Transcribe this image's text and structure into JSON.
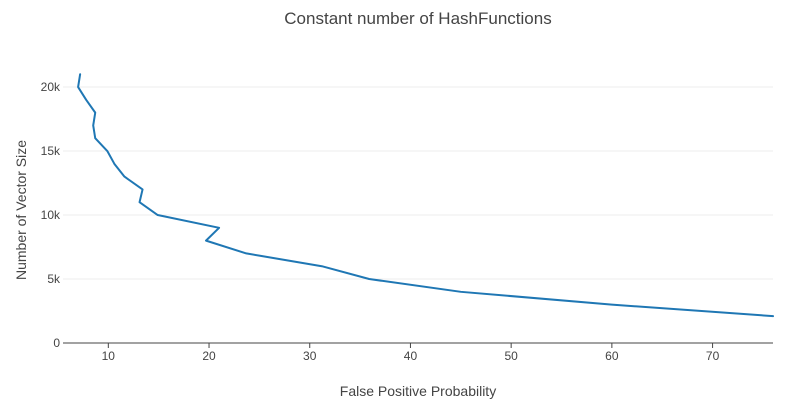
{
  "chart_data": {
    "type": "line",
    "title": "Constant number of HashFunctions",
    "xlabel": "False Positive Probability",
    "ylabel": "Number of Vector Size",
    "xlim": [
      5.5,
      76
    ],
    "ylim": [
      0,
      21800
    ],
    "x_ticks": [
      10,
      20,
      30,
      40,
      50,
      60,
      70
    ],
    "x_tick_labels": [
      "10",
      "20",
      "30",
      "40",
      "50",
      "60",
      "70"
    ],
    "y_ticks": [
      0,
      5000,
      10000,
      15000,
      20000
    ],
    "y_tick_labels": [
      "0",
      "5k",
      "10k",
      "15k",
      "20k"
    ],
    "grid": "horizontal",
    "legend": "none",
    "series": [
      {
        "color": "#1f77b4",
        "points": [
          [
            7.2,
            21000
          ],
          [
            7.0,
            20000
          ],
          [
            7.8,
            19000
          ],
          [
            8.7,
            18000
          ],
          [
            8.5,
            17000
          ],
          [
            8.7,
            16000
          ],
          [
            9.9,
            15000
          ],
          [
            10.6,
            14000
          ],
          [
            11.6,
            13000
          ],
          [
            13.4,
            12000
          ],
          [
            13.1,
            11000
          ],
          [
            14.9,
            10000
          ],
          [
            21.0,
            9000
          ],
          [
            19.7,
            8000
          ],
          [
            23.7,
            7000
          ],
          [
            31.2,
            6000
          ],
          [
            35.9,
            5000
          ],
          [
            45.0,
            4000
          ],
          [
            60.0,
            3000
          ],
          [
            76.0,
            2100
          ]
        ]
      }
    ]
  }
}
